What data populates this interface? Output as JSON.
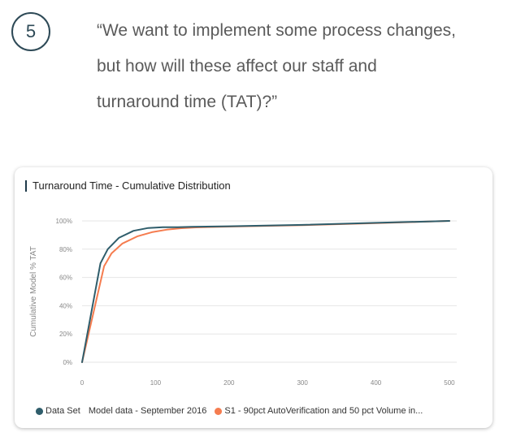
{
  "step_number": "5",
  "quote_lines": [
    "“We want to implement some process changes,",
    "but how will these affect our staff and",
    "turnaround time (TAT)?”"
  ],
  "colors": {
    "accent": "#2e4a57",
    "series_1": "#2f5d6b",
    "series_2": "#f57c4f"
  },
  "chart_data": {
    "type": "line",
    "title": "Turnaround Time - Cumulative Distribution",
    "xlabel": "",
    "ylabel": "Cumulative Model % TAT",
    "xlim": [
      0,
      510
    ],
    "ylim": [
      0,
      100
    ],
    "x_ticks": [
      "0",
      "100",
      "200",
      "300",
      "400",
      "500"
    ],
    "y_ticks": [
      "0%",
      "20%",
      "40%",
      "60%",
      "80%",
      "100%"
    ],
    "grid": true,
    "legend_position": "bottom",
    "legend_title": "Data Set",
    "series": [
      {
        "name": "Model data - September 2016",
        "color": "#2f5d6b",
        "x": [
          0,
          25,
          35,
          50,
          70,
          90,
          110,
          130,
          150,
          200,
          300,
          400,
          500
        ],
        "y": [
          0,
          70,
          80,
          88,
          93,
          95,
          95.5,
          95.6,
          95.8,
          96.2,
          97.2,
          98.6,
          100
        ]
      },
      {
        "name": "S1 - 90pct AutoVerification and 50 pct Volume in...",
        "color": "#f57c4f",
        "x": [
          0,
          30,
          40,
          55,
          75,
          95,
          115,
          135,
          155,
          200,
          300,
          400,
          500
        ],
        "y": [
          0,
          68,
          77,
          84,
          89,
          92,
          93.8,
          94.8,
          95.4,
          96,
          97,
          98.4,
          100
        ]
      }
    ]
  }
}
